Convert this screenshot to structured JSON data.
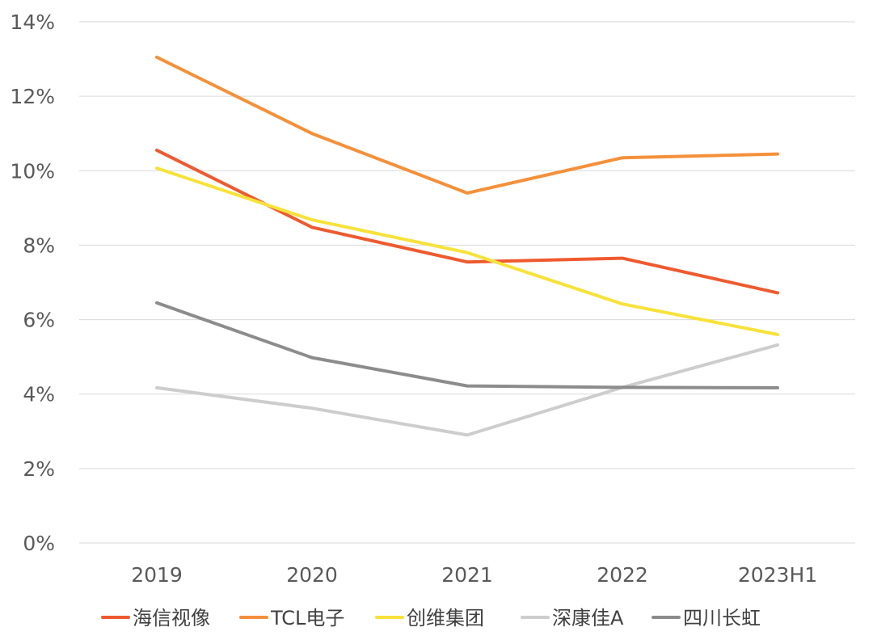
{
  "chart_data": {
    "type": "line",
    "title": "",
    "xlabel": "",
    "ylabel": "",
    "categories": [
      "2019",
      "2020",
      "2021",
      "2022",
      "2023H1"
    ],
    "ylim": [
      0,
      14
    ],
    "yticks": [
      0,
      2,
      4,
      6,
      8,
      10,
      12,
      14
    ],
    "ytick_labels": [
      "0%",
      "2%",
      "4%",
      "6%",
      "8%",
      "10%",
      "12%",
      "14%"
    ],
    "grid": true,
    "legend_position": "bottom",
    "series": [
      {
        "name": "海信视像",
        "color": "#EE5A2F",
        "values": [
          10.55,
          8.48,
          7.55,
          7.65,
          6.72
        ]
      },
      {
        "name": "TCL电子",
        "color": "#F4903A",
        "values": [
          13.05,
          11.0,
          9.4,
          10.35,
          10.45
        ]
      },
      {
        "name": "创维集团",
        "color": "#F7E23A",
        "values": [
          10.07,
          8.68,
          7.8,
          6.42,
          5.6
        ]
      },
      {
        "name": "深康佳A",
        "color": "#CDCDCD",
        "values": [
          4.17,
          3.62,
          2.9,
          4.18,
          5.32
        ]
      },
      {
        "name": "四川长虹",
        "color": "#8C8C8C",
        "values": [
          6.45,
          4.98,
          4.22,
          4.18,
          4.17
        ]
      }
    ]
  }
}
